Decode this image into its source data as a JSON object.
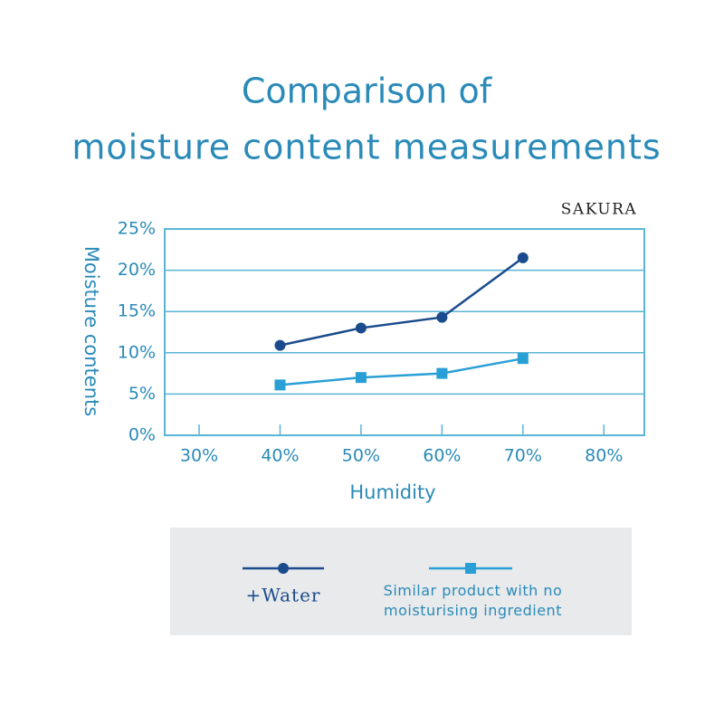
{
  "chart_data": {
    "type": "line",
    "title": [
      "Comparison of",
      "moisture content measurements"
    ],
    "brand": "SAKURA",
    "xlabel": "Humidity",
    "ylabel": "Moisture contents",
    "x": [
      40,
      50,
      60,
      70
    ],
    "series": [
      {
        "name": "+Water",
        "color": "#1a4b8c",
        "marker": "circle",
        "values": [
          10.9,
          13.0,
          14.3,
          21.5
        ]
      },
      {
        "name": "Similar product with no moisturising ingredient",
        "color": "#2a9fd6",
        "marker": "square",
        "values": [
          6.1,
          7.0,
          7.5,
          9.3
        ]
      }
    ],
    "xlim": [
      25.75,
      85
    ],
    "ylim": [
      0,
      25
    ],
    "xticks": [
      {
        "value": 30,
        "label": "30%"
      },
      {
        "value": 40,
        "label": "40%"
      },
      {
        "value": 50,
        "label": "50%"
      },
      {
        "value": 60,
        "label": "60%"
      },
      {
        "value": 70,
        "label": "70%"
      },
      {
        "value": 80,
        "label": "80%"
      }
    ],
    "yticks": [
      {
        "value": 0,
        "label": "0%"
      },
      {
        "value": 5,
        "label": "5%"
      },
      {
        "value": 10,
        "label": "10%"
      },
      {
        "value": 15,
        "label": "15%"
      },
      {
        "value": 20,
        "label": "20%"
      },
      {
        "value": 25,
        "label": "25%"
      }
    ],
    "grid": true
  }
}
